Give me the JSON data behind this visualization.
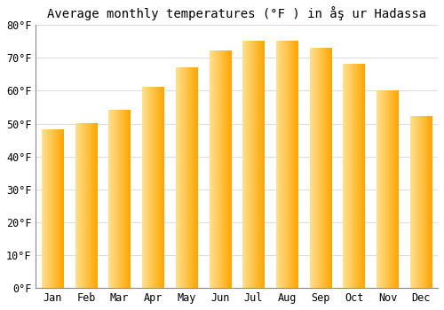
{
  "title": "Average monthly temperatures (°F ) in åş ur Hadassa",
  "months": [
    "Jan",
    "Feb",
    "Mar",
    "Apr",
    "May",
    "Jun",
    "Jul",
    "Aug",
    "Sep",
    "Oct",
    "Nov",
    "Dec"
  ],
  "values": [
    48,
    50,
    54,
    61,
    67,
    72,
    75,
    75,
    73,
    68,
    60,
    52
  ],
  "bar_color_main": "#FFA500",
  "bar_color_light": "#FFE090",
  "bar_color_dark": "#E07800",
  "ylim": [
    0,
    80
  ],
  "yticks": [
    0,
    10,
    20,
    30,
    40,
    50,
    60,
    70,
    80
  ],
  "ytick_labels": [
    "0°F",
    "10°F",
    "20°F",
    "30°F",
    "40°F",
    "50°F",
    "60°F",
    "70°F",
    "80°F"
  ],
  "background_color": "#ffffff",
  "grid_color": "#dddddd",
  "title_fontsize": 10,
  "tick_fontsize": 8.5
}
